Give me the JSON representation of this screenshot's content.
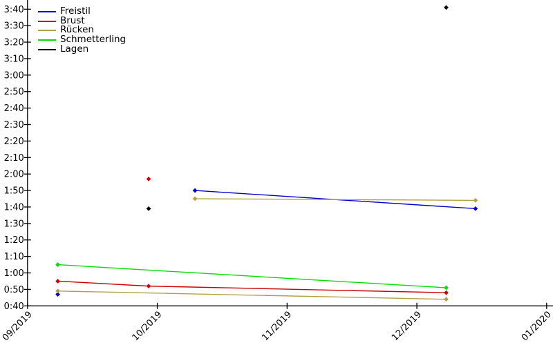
{
  "chart_data": {
    "type": "line",
    "title": "",
    "xlabel": "",
    "ylabel": "",
    "grid": false,
    "legend_position": "top-left",
    "axis_color": "#000000",
    "background_color": "#ffffff",
    "y_axis": {
      "unit": "min:sec",
      "range_seconds": [
        40,
        220
      ],
      "tick_step_seconds": 10,
      "ticks": [
        "3:40",
        "3:30",
        "3:20",
        "3:10",
        "3:00",
        "2:50",
        "2:40",
        "2:30",
        "2:20",
        "2:10",
        "2:00",
        "1:50",
        "1:40",
        "1:30",
        "1:20",
        "1:10",
        "1:00",
        "0:50",
        "0:40"
      ]
    },
    "x_axis": {
      "range": [
        "2019-09-01",
        "2020-01-01"
      ],
      "ticks": [
        "09/2019",
        "10/2019",
        "11/2019",
        "12/2019",
        "01/2020"
      ],
      "tick_label_rotation_deg": -45
    },
    "legend": [
      "Freistil",
      "Brust",
      "Rücken",
      "Schmetterling",
      "Lagen"
    ],
    "series": [
      {
        "name": "Freistil",
        "color": "#0000cc",
        "segments": [
          {
            "points": [
              {
                "date": "2019-09-08",
                "time": "0:47"
              }
            ]
          },
          {
            "points": [
              {
                "date": "2019-10-10",
                "time": "1:50"
              },
              {
                "date": "2019-12-15",
                "time": "1:39"
              }
            ]
          }
        ]
      },
      {
        "name": "Brust",
        "color": "#cc0000",
        "segments": [
          {
            "points": [
              {
                "date": "2019-09-29",
                "time": "1:57"
              }
            ]
          },
          {
            "points": [
              {
                "date": "2019-09-08",
                "time": "0:55"
              },
              {
                "date": "2019-09-29",
                "time": "0:52"
              },
              {
                "date": "2019-12-08",
                "time": "0:48"
              }
            ]
          }
        ]
      },
      {
        "name": "Rücken",
        "color": "#b2a044",
        "segments": [
          {
            "points": [
              {
                "date": "2019-10-10",
                "time": "1:45"
              },
              {
                "date": "2019-12-15",
                "time": "1:44"
              }
            ]
          },
          {
            "points": [
              {
                "date": "2019-09-08",
                "time": "0:49"
              },
              {
                "date": "2019-12-08",
                "time": "0:44"
              }
            ]
          }
        ]
      },
      {
        "name": "Schmetterling",
        "color": "#00dd00",
        "segments": [
          {
            "points": [
              {
                "date": "2019-09-08",
                "time": "1:05"
              },
              {
                "date": "2019-12-08",
                "time": "0:51"
              }
            ]
          }
        ]
      },
      {
        "name": "Lagen",
        "color": "#000000",
        "segments": [
          {
            "points": [
              {
                "date": "2019-09-29",
                "time": "1:39"
              }
            ]
          },
          {
            "points": [
              {
                "date": "2019-12-08",
                "time": "3:41"
              }
            ]
          }
        ]
      }
    ]
  }
}
